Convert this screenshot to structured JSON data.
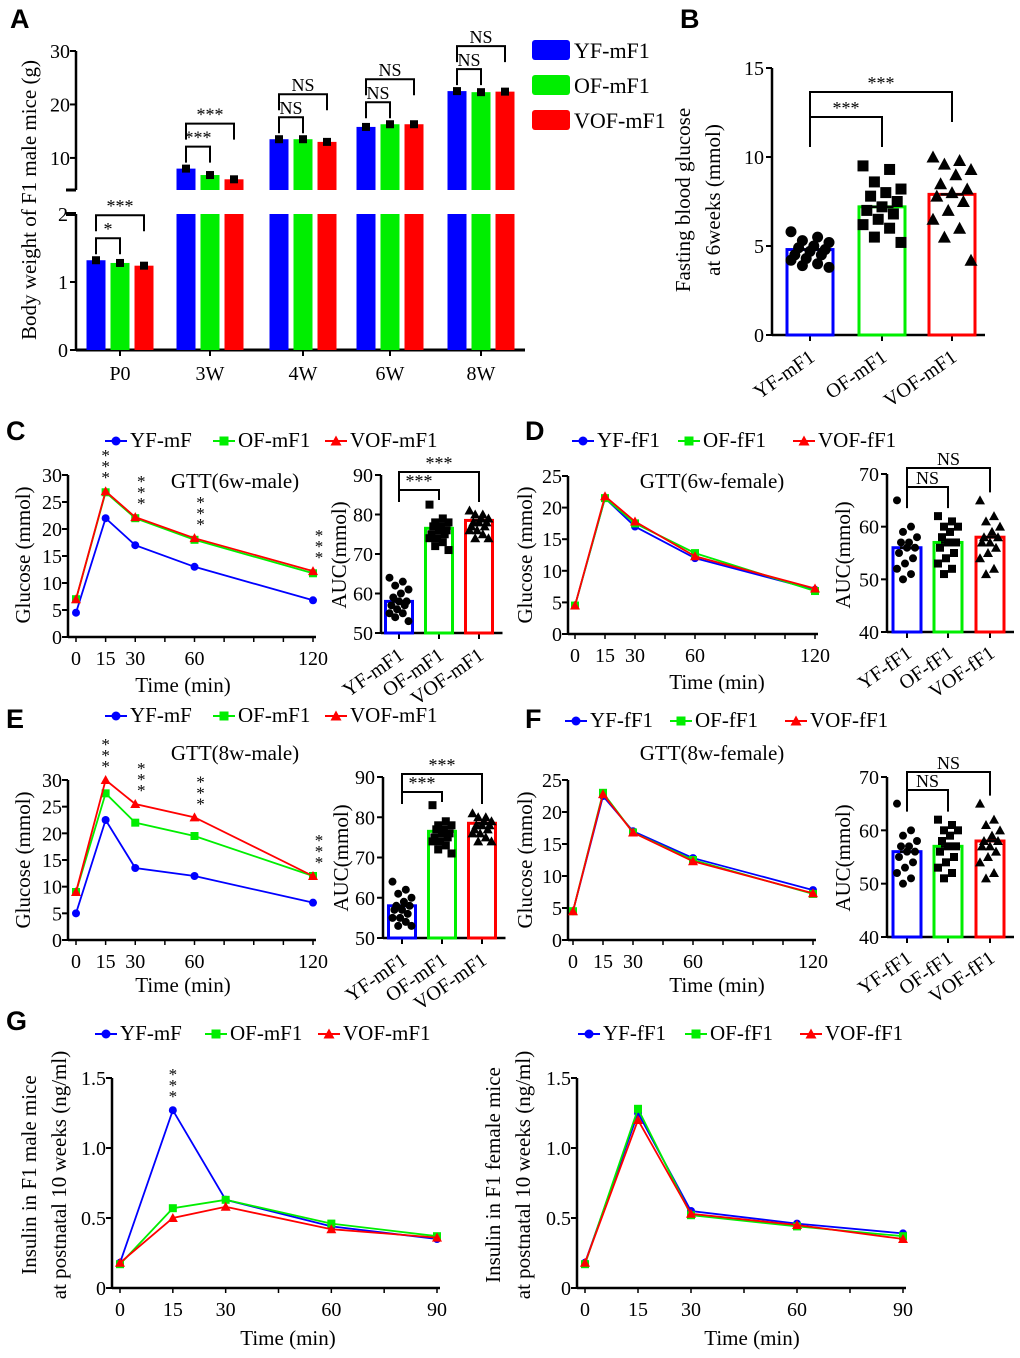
{
  "panel_labels": [
    "A",
    "B",
    "C",
    "D",
    "E",
    "F",
    "G"
  ],
  "colors": {
    "YF": "#0000ff",
    "OF": "#00ee00",
    "VOF": "#ff0000"
  },
  "chart_data": [
    {
      "id": "A",
      "type": "bar",
      "title": "",
      "xlabel": "",
      "ylabel": "Body weight of F1 male mice (g)",
      "categories": [
        "P0",
        "3W",
        "4W",
        "6W",
        "8W"
      ],
      "series": [
        {
          "name": "YF-mF1",
          "color": "#0000ff",
          "values": [
            1.32,
            8.0,
            13.5,
            15.8,
            22.5
          ]
        },
        {
          "name": "OF-mF1",
          "color": "#00ee00",
          "values": [
            1.28,
            6.8,
            13.5,
            16.3,
            22.3
          ]
        },
        {
          "name": "VOF-mF1",
          "color": "#ff0000",
          "values": [
            1.24,
            6.0,
            13.0,
            16.3,
            22.4
          ]
        }
      ],
      "ylim": [
        0,
        30
      ],
      "axis_break": [
        2,
        4
      ],
      "yticks_lower": [
        "0",
        "1",
        "2"
      ],
      "yticks_upper": [
        "10",
        "20",
        "30"
      ],
      "legend": "top-right",
      "annotations": [
        {
          "category": 0,
          "pair": [
            0,
            1
          ],
          "text": "*"
        },
        {
          "category": 0,
          "pair": [
            0,
            2
          ],
          "text": "***"
        },
        {
          "category": 1,
          "pair": [
            0,
            1
          ],
          "text": "***"
        },
        {
          "category": 1,
          "pair": [
            0,
            2
          ],
          "text": "***"
        },
        {
          "category": 2,
          "pair": [
            0,
            1
          ],
          "text": "NS"
        },
        {
          "category": 2,
          "pair": [
            0,
            2
          ],
          "text": "NS"
        },
        {
          "category": 3,
          "pair": [
            0,
            1
          ],
          "text": "NS"
        },
        {
          "category": 3,
          "pair": [
            0,
            2
          ],
          "text": "NS"
        },
        {
          "category": 4,
          "pair": [
            0,
            1
          ],
          "text": "NS"
        },
        {
          "category": 4,
          "pair": [
            0,
            2
          ],
          "text": "NS"
        }
      ]
    },
    {
      "id": "B",
      "type": "bar",
      "ylabel": [
        "Fasting blood glucose",
        "at 6weeks (mmol)"
      ],
      "categories": [
        "YF-mF1",
        "OF-mF1",
        "VOF-mF1"
      ],
      "values": [
        4.8,
        7.2,
        7.9
      ],
      "points": [
        [
          5.8,
          5.5,
          5.3,
          5.2,
          5.0,
          4.9,
          4.8,
          4.7,
          4.5,
          4.5,
          4.3,
          4.2,
          4.0,
          3.9,
          3.8
        ],
        [
          9.5,
          9.3,
          8.6,
          8.2,
          8.0,
          7.8,
          7.5,
          7.2,
          7.0,
          6.8,
          6.5,
          6.2,
          6.0,
          5.5,
          5.2
        ],
        [
          10.0,
          9.8,
          9.6,
          9.3,
          9.0,
          8.5,
          8.2,
          8.0,
          7.8,
          7.5,
          7.0,
          6.5,
          6.0,
          5.5,
          4.2
        ]
      ],
      "ylim": [
        0,
        15
      ],
      "yticks": [
        "0",
        "5",
        "10",
        "15"
      ],
      "annotations": [
        {
          "pair": [
            0,
            1
          ],
          "text": "***"
        },
        {
          "pair": [
            0,
            2
          ],
          "text": "***"
        }
      ]
    },
    {
      "id": "C",
      "type": "line",
      "title": "GTT(6w-male)",
      "xlabel": "Time (min)",
      "ylabel": "Glucose (mmol)",
      "x": [
        0,
        15,
        30,
        60,
        120
      ],
      "xticks": [
        "0",
        "15",
        "30",
        "60",
        "120"
      ],
      "ylim": [
        0,
        30
      ],
      "yticks": [
        "0",
        "5",
        "10",
        "15",
        "20",
        "25",
        "30"
      ],
      "series": [
        {
          "name": "YF-mF",
          "color": "#0000ff",
          "marker": "circle",
          "values": [
            4.5,
            22.0,
            17.0,
            13.0,
            6.8
          ]
        },
        {
          "name": "OF-mF1",
          "color": "#00ee00",
          "marker": "square",
          "values": [
            7.0,
            26.8,
            22.0,
            18.0,
            11.8
          ]
        },
        {
          "name": "VOF-mF1",
          "color": "#ff0000",
          "marker": "triangle",
          "values": [
            7.0,
            27.0,
            22.2,
            18.3,
            12.2
          ]
        }
      ],
      "annotations": [
        {
          "x": 15,
          "text": "***"
        },
        {
          "x": 30,
          "text": "***"
        },
        {
          "x": 60,
          "text": "***"
        },
        {
          "x": 120,
          "text": "***"
        }
      ]
    },
    {
      "id": "C-AUC",
      "type": "bar",
      "ylabel": "AUC(mmol)",
      "categories": [
        "YF-mF1",
        "OF-mF1",
        "VOF-mF1"
      ],
      "values": [
        58.0,
        76.5,
        78.5
      ],
      "points": [
        [
          64,
          63,
          62,
          61,
          60,
          59,
          58,
          58,
          57,
          57,
          56,
          55,
          55,
          54,
          53
        ],
        [
          82.5,
          79,
          78,
          78,
          77,
          77,
          76,
          76,
          75,
          75,
          74,
          74,
          73,
          72,
          71
        ],
        [
          81,
          80,
          80,
          79,
          79,
          78,
          78,
          78,
          77,
          77,
          76,
          76,
          75,
          74,
          74
        ]
      ],
      "ylim": [
        50,
        90
      ],
      "yticks": [
        "50",
        "60",
        "70",
        "80",
        "90"
      ],
      "annotations": [
        {
          "pair": [
            0,
            1
          ],
          "text": "***"
        },
        {
          "pair": [
            0,
            2
          ],
          "text": "***"
        }
      ]
    },
    {
      "id": "D",
      "type": "line",
      "title": "GTT(6w-female)",
      "xlabel": "Time (min)",
      "ylabel": "Glucose (mmol)",
      "x": [
        0,
        15,
        30,
        60,
        120
      ],
      "xticks": [
        "0",
        "15",
        "30",
        "60",
        "120"
      ],
      "ylim": [
        0,
        25
      ],
      "yticks": [
        "0",
        "5",
        "10",
        "15",
        "20",
        "25"
      ],
      "series": [
        {
          "name": "YF-fF1",
          "color": "#0000ff",
          "marker": "circle",
          "values": [
            4.5,
            21.5,
            17.0,
            12.0,
            7.0
          ]
        },
        {
          "name": "OF-fF1",
          "color": "#00ee00",
          "marker": "square",
          "values": [
            4.5,
            21.5,
            17.5,
            12.8,
            6.8
          ]
        },
        {
          "name": "VOF-fF1",
          "color": "#ff0000",
          "marker": "triangle",
          "values": [
            4.5,
            21.8,
            17.8,
            12.3,
            7.2
          ]
        }
      ],
      "annotations": []
    },
    {
      "id": "D-AUC",
      "type": "bar",
      "ylabel": "AUC(mmol)",
      "categories": [
        "YF-fF1",
        "OF-fF1",
        "VOF-fF1"
      ],
      "values": [
        56.0,
        57.0,
        58.0
      ],
      "points": [
        [
          65,
          60,
          59,
          58,
          57,
          57,
          56,
          56,
          55,
          54,
          53,
          52,
          51,
          50
        ],
        [
          62,
          61,
          60,
          60,
          59,
          58,
          57,
          57,
          56,
          55,
          54,
          53,
          52,
          51
        ],
        [
          65,
          62,
          61,
          60,
          59,
          58,
          58,
          57,
          57,
          56,
          55,
          54,
          52,
          51
        ]
      ],
      "ylim": [
        40,
        70
      ],
      "yticks": [
        "40",
        "50",
        "60",
        "70"
      ],
      "annotations": [
        {
          "pair": [
            0,
            1
          ],
          "text": "NS"
        },
        {
          "pair": [
            0,
            2
          ],
          "text": "NS"
        }
      ]
    },
    {
      "id": "E",
      "type": "line",
      "title": "GTT(8w-male)",
      "xlabel": "Time (min)",
      "ylabel": "Glucose (mmol)",
      "x": [
        0,
        15,
        30,
        60,
        120
      ],
      "xticks": [
        "0",
        "15",
        "30",
        "60",
        "120"
      ],
      "ylim": [
        0,
        30
      ],
      "yticks": [
        "0",
        "5",
        "10",
        "15",
        "20",
        "25",
        "30"
      ],
      "series": [
        {
          "name": "YF-mF",
          "color": "#0000ff",
          "marker": "circle",
          "values": [
            5.0,
            22.5,
            13.5,
            12.0,
            7.0
          ]
        },
        {
          "name": "OF-mF1",
          "color": "#00ee00",
          "marker": "square",
          "values": [
            9.0,
            27.5,
            22.0,
            19.5,
            12.0
          ]
        },
        {
          "name": "VOF-mF1",
          "color": "#ff0000",
          "marker": "triangle",
          "values": [
            9.0,
            30.0,
            25.5,
            23.0,
            12.0
          ]
        }
      ],
      "annotations": [
        {
          "x": 15,
          "text": "***"
        },
        {
          "x": 30,
          "text": "***"
        },
        {
          "x": 60,
          "text": "***"
        },
        {
          "x": 120,
          "text": "***"
        }
      ]
    },
    {
      "id": "E-AUC",
      "type": "bar",
      "ylabel": "AUC(mmol)",
      "categories": [
        "YF-mF1",
        "OF-mF1",
        "VOF-mF1"
      ],
      "values": [
        58.0,
        76.5,
        78.5
      ],
      "points": [
        [
          64,
          62,
          61,
          60,
          59,
          58,
          58,
          57,
          57,
          56,
          55,
          55,
          54,
          53,
          53
        ],
        [
          83,
          79,
          78,
          78,
          77,
          77,
          76,
          76,
          75,
          75,
          74,
          74,
          73,
          72,
          71
        ],
        [
          81,
          80,
          80,
          79,
          79,
          78,
          78,
          78,
          77,
          77,
          76,
          76,
          75,
          74,
          74
        ]
      ],
      "ylim": [
        50,
        90
      ],
      "yticks": [
        "50",
        "60",
        "70",
        "80",
        "90"
      ],
      "annotations": [
        {
          "pair": [
            0,
            1
          ],
          "text": "***"
        },
        {
          "pair": [
            0,
            2
          ],
          "text": "***"
        }
      ]
    },
    {
      "id": "F",
      "type": "line",
      "title": "GTT(8w-female)",
      "xlabel": "Time (min)",
      "ylabel": "Glucose (mmol)",
      "x": [
        0,
        15,
        30,
        60,
        120
      ],
      "xticks": [
        "0",
        "15",
        "30",
        "60",
        "120"
      ],
      "ylim": [
        0,
        25
      ],
      "yticks": [
        "0",
        "5",
        "10",
        "15",
        "20",
        "25"
      ],
      "series": [
        {
          "name": "YF-fF1",
          "color": "#0000ff",
          "marker": "circle",
          "values": [
            4.5,
            22.5,
            17.0,
            12.8,
            7.8
          ]
        },
        {
          "name": "OF-fF1",
          "color": "#00ee00",
          "marker": "square",
          "values": [
            4.5,
            23.0,
            16.8,
            12.5,
            7.2
          ]
        },
        {
          "name": "VOF-fF1",
          "color": "#ff0000",
          "marker": "triangle",
          "values": [
            4.5,
            22.8,
            16.8,
            12.3,
            7.3
          ]
        }
      ],
      "annotations": []
    },
    {
      "id": "F-AUC",
      "type": "bar",
      "ylabel": "AUC(mmol)",
      "categories": [
        "YF-fF1",
        "OF-fF1",
        "VOF-fF1"
      ],
      "values": [
        56.0,
        57.0,
        58.0
      ],
      "points": [
        [
          65,
          60,
          59,
          58,
          57,
          57,
          56,
          56,
          55,
          54,
          53,
          52,
          51,
          50
        ],
        [
          62,
          61,
          60,
          60,
          59,
          58,
          57,
          57,
          56,
          55,
          54,
          53,
          52,
          51
        ],
        [
          65,
          62,
          61,
          60,
          59,
          58,
          58,
          57,
          57,
          56,
          55,
          54,
          52,
          51
        ]
      ],
      "ylim": [
        40,
        70
      ],
      "yticks": [
        "40",
        "50",
        "60",
        "70"
      ],
      "annotations": [
        {
          "pair": [
            0,
            1
          ],
          "text": "NS"
        },
        {
          "pair": [
            0,
            2
          ],
          "text": "NS"
        }
      ]
    },
    {
      "id": "G-male",
      "type": "line",
      "title": "",
      "xlabel": "Time (min)",
      "ylabel": [
        "Insulin in F1 male mice",
        "at postnatal 10 weeks (ng/ml)"
      ],
      "x": [
        0,
        15,
        30,
        60,
        90
      ],
      "xticks": [
        "0",
        "15",
        "30",
        "60",
        "90"
      ],
      "ylim": [
        0,
        1.5
      ],
      "yticks": [
        "0",
        "0.5",
        "1.0",
        "1.5"
      ],
      "series": [
        {
          "name": "YF-mF",
          "color": "#0000ff",
          "marker": "circle",
          "values": [
            0.18,
            1.27,
            0.63,
            0.44,
            0.35
          ]
        },
        {
          "name": "OF-mF1",
          "color": "#00ee00",
          "marker": "square",
          "values": [
            0.17,
            0.57,
            0.63,
            0.46,
            0.37
          ]
        },
        {
          "name": "VOF-mF1",
          "color": "#ff0000",
          "marker": "triangle",
          "values": [
            0.18,
            0.5,
            0.58,
            0.42,
            0.36
          ]
        }
      ],
      "annotations": [
        {
          "x": 15,
          "text": "***"
        }
      ]
    },
    {
      "id": "G-female",
      "type": "line",
      "title": "",
      "xlabel": "Time (min)",
      "ylabel": [
        "Insulin in F1 female mice",
        "at postnatal 10 weeks (ng/ml)"
      ],
      "x": [
        0,
        15,
        30,
        60,
        90
      ],
      "xticks": [
        "0",
        "15",
        "30",
        "60",
        "90"
      ],
      "ylim": [
        0,
        1.5
      ],
      "yticks": [
        "0",
        "0.5",
        "1.0",
        "1.5"
      ],
      "series": [
        {
          "name": "YF-fF1",
          "color": "#0000ff",
          "marker": "circle",
          "values": [
            0.18,
            1.25,
            0.55,
            0.46,
            0.39
          ]
        },
        {
          "name": "OF-fF1",
          "color": "#00ee00",
          "marker": "square",
          "values": [
            0.17,
            1.28,
            0.52,
            0.44,
            0.37
          ]
        },
        {
          "name": "VOF-fF1",
          "color": "#ff0000",
          "marker": "triangle",
          "values": [
            0.18,
            1.2,
            0.53,
            0.45,
            0.35
          ]
        }
      ],
      "annotations": []
    }
  ]
}
